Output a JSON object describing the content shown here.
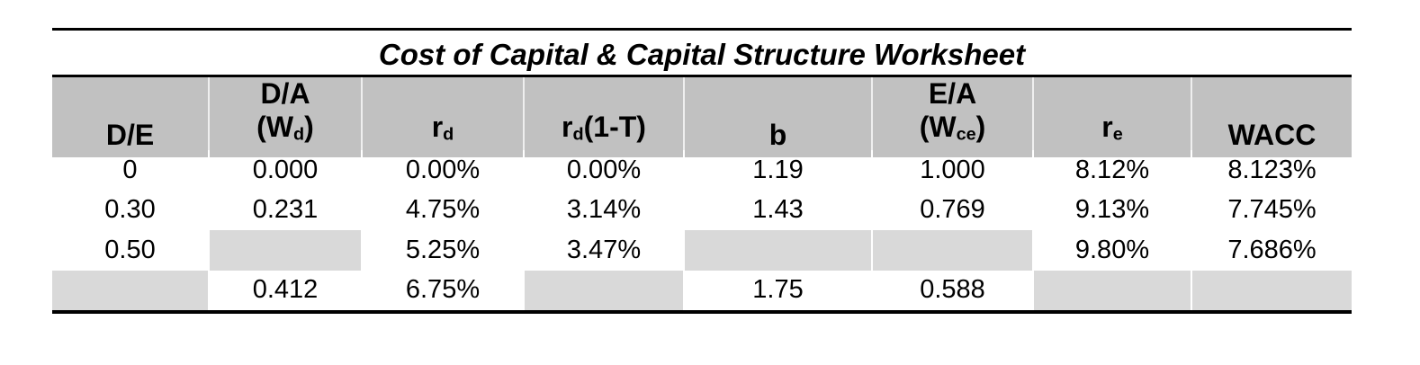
{
  "title": "Cost of Capital & Capital Structure Worksheet",
  "colors": {
    "header_bg": "#c1c1c1",
    "blank_cell_bg": "#d9d9d9",
    "rule": "#000000",
    "text": "#000000"
  },
  "table": {
    "columns": [
      {
        "id": "de",
        "lines": [
          [
            {
              "t": "D/E"
            }
          ]
        ]
      },
      {
        "id": "da-wd",
        "lines": [
          [
            {
              "t": "D/A"
            }
          ],
          [
            {
              "t": "(W"
            },
            {
              "t": "d",
              "sub": true
            },
            {
              "t": ")"
            }
          ]
        ]
      },
      {
        "id": "rd",
        "lines": [
          [
            {
              "t": "r"
            },
            {
              "t": "d",
              "sub": true
            }
          ]
        ]
      },
      {
        "id": "rd-1-t",
        "lines": [
          [
            {
              "t": "r"
            },
            {
              "t": "d",
              "sub": true
            },
            {
              "t": "(1-T)"
            }
          ]
        ]
      },
      {
        "id": "b",
        "lines": [
          [
            {
              "t": "b"
            }
          ]
        ]
      },
      {
        "id": "ea-wce",
        "lines": [
          [
            {
              "t": "E/A"
            }
          ],
          [
            {
              "t": "(W"
            },
            {
              "t": "ce",
              "sub": true
            },
            {
              "t": ")"
            }
          ]
        ]
      },
      {
        "id": "re",
        "lines": [
          [
            {
              "t": "r"
            },
            {
              "t": "e",
              "sub": true
            }
          ]
        ]
      },
      {
        "id": "wacc",
        "lines": [
          [
            {
              "t": "WACC"
            }
          ]
        ]
      }
    ],
    "rows": [
      [
        "0",
        "0.000",
        "0.00%",
        "0.00%",
        "1.19",
        "1.000",
        "8.12%",
        "8.123%"
      ],
      [
        "0.30",
        "0.231",
        "4.75%",
        "3.14%",
        "1.43",
        "0.769",
        "9.13%",
        "7.745%"
      ],
      [
        "0.50",
        null,
        "5.25%",
        "3.47%",
        null,
        null,
        "9.80%",
        "7.686%"
      ],
      [
        null,
        "0.412",
        "6.75%",
        null,
        "1.75",
        "0.588",
        null,
        null
      ]
    ]
  }
}
